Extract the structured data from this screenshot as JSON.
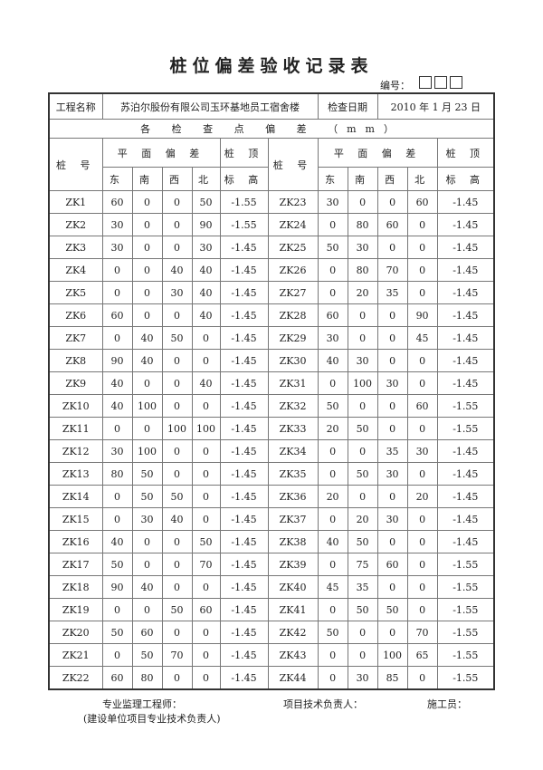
{
  "title": "桩位偏差验收记录表",
  "code_label": "编号：",
  "info": {
    "project_label": "工程名称",
    "project": "苏泊尔股份有限公司玉环基地员工宿舍楼",
    "date_label": "检查日期",
    "date": "2010 年 1 月 23 日"
  },
  "subtitle": "各 检 查 点 偏 差 （mm）",
  "headers": {
    "pile": "桩 号",
    "plane": "平 面 偏 差",
    "top1": "桩 顶",
    "top2": "标 高",
    "east": "东",
    "south": "南",
    "west": "西",
    "north": "北"
  },
  "rows_left": [
    [
      "ZK1",
      "60",
      "0",
      "0",
      "50",
      "-1.55"
    ],
    [
      "ZK2",
      "30",
      "0",
      "0",
      "90",
      "-1.55"
    ],
    [
      "ZK3",
      "30",
      "0",
      "0",
      "30",
      "-1.45"
    ],
    [
      "ZK4",
      "0",
      "0",
      "40",
      "40",
      "-1.45"
    ],
    [
      "ZK5",
      "0",
      "0",
      "30",
      "40",
      "-1.45"
    ],
    [
      "ZK6",
      "60",
      "0",
      "0",
      "40",
      "-1.45"
    ],
    [
      "ZK7",
      "0",
      "40",
      "50",
      "0",
      "-1.45"
    ],
    [
      "ZK8",
      "90",
      "40",
      "0",
      "0",
      "-1.45"
    ],
    [
      "ZK9",
      "40",
      "0",
      "0",
      "40",
      "-1.45"
    ],
    [
      "ZK10",
      "40",
      "100",
      "0",
      "0",
      "-1.45"
    ],
    [
      "ZK11",
      "0",
      "0",
      "100",
      "100",
      "-1.45"
    ],
    [
      "ZK12",
      "30",
      "100",
      "0",
      "0",
      "-1.45"
    ],
    [
      "ZK13",
      "80",
      "50",
      "0",
      "0",
      "-1.45"
    ],
    [
      "ZK14",
      "0",
      "50",
      "50",
      "0",
      "-1.45"
    ],
    [
      "ZK15",
      "0",
      "30",
      "40",
      "0",
      "-1.45"
    ],
    [
      "ZK16",
      "40",
      "0",
      "0",
      "50",
      "-1.45"
    ],
    [
      "ZK17",
      "50",
      "0",
      "0",
      "70",
      "-1.45"
    ],
    [
      "ZK18",
      "90",
      "40",
      "0",
      "0",
      "-1.45"
    ],
    [
      "ZK19",
      "0",
      "0",
      "50",
      "60",
      "-1.45"
    ],
    [
      "ZK20",
      "50",
      "60",
      "0",
      "0",
      "-1.45"
    ],
    [
      "ZK21",
      "0",
      "50",
      "70",
      "0",
      "-1.45"
    ],
    [
      "ZK22",
      "60",
      "80",
      "0",
      "0",
      "-1.45"
    ]
  ],
  "rows_right": [
    [
      "ZK23",
      "30",
      "0",
      "0",
      "60",
      "-1.45"
    ],
    [
      "ZK24",
      "0",
      "80",
      "60",
      "0",
      "-1.45"
    ],
    [
      "ZK25",
      "50",
      "30",
      "0",
      "0",
      "-1.45"
    ],
    [
      "ZK26",
      "0",
      "80",
      "70",
      "0",
      "-1.45"
    ],
    [
      "ZK27",
      "0",
      "20",
      "35",
      "0",
      "-1.45"
    ],
    [
      "ZK28",
      "60",
      "0",
      "0",
      "90",
      "-1.45"
    ],
    [
      "ZK29",
      "30",
      "0",
      "0",
      "45",
      "-1.45"
    ],
    [
      "ZK30",
      "40",
      "30",
      "0",
      "0",
      "-1.45"
    ],
    [
      "ZK31",
      "0",
      "100",
      "30",
      "0",
      "-1.45"
    ],
    [
      "ZK32",
      "50",
      "0",
      "0",
      "60",
      "-1.55"
    ],
    [
      "ZK33",
      "20",
      "50",
      "0",
      "0",
      "-1.55"
    ],
    [
      "ZK34",
      "0",
      "0",
      "35",
      "30",
      "-1.45"
    ],
    [
      "ZK35",
      "0",
      "50",
      "30",
      "0",
      "-1.45"
    ],
    [
      "ZK36",
      "20",
      "0",
      "0",
      "20",
      "-1.45"
    ],
    [
      "ZK37",
      "0",
      "20",
      "30",
      "0",
      "-1.45"
    ],
    [
      "ZK38",
      "40",
      "50",
      "0",
      "0",
      "-1.45"
    ],
    [
      "ZK39",
      "0",
      "75",
      "60",
      "0",
      "-1.55"
    ],
    [
      "ZK40",
      "45",
      "35",
      "0",
      "0",
      "-1.55"
    ],
    [
      "ZK41",
      "0",
      "50",
      "50",
      "0",
      "-1.55"
    ],
    [
      "ZK42",
      "50",
      "0",
      "0",
      "70",
      "-1.55"
    ],
    [
      "ZK43",
      "0",
      "0",
      "100",
      "65",
      "-1.55"
    ],
    [
      "ZK44",
      "0",
      "30",
      "85",
      "0",
      "-1.55"
    ]
  ],
  "footer": {
    "supervisor": "专业监理工程师：",
    "supervisor_note": "(建设单位项目专业技术负责人)",
    "tech_lead": "项目技术负责人：",
    "builder": "施工员："
  }
}
